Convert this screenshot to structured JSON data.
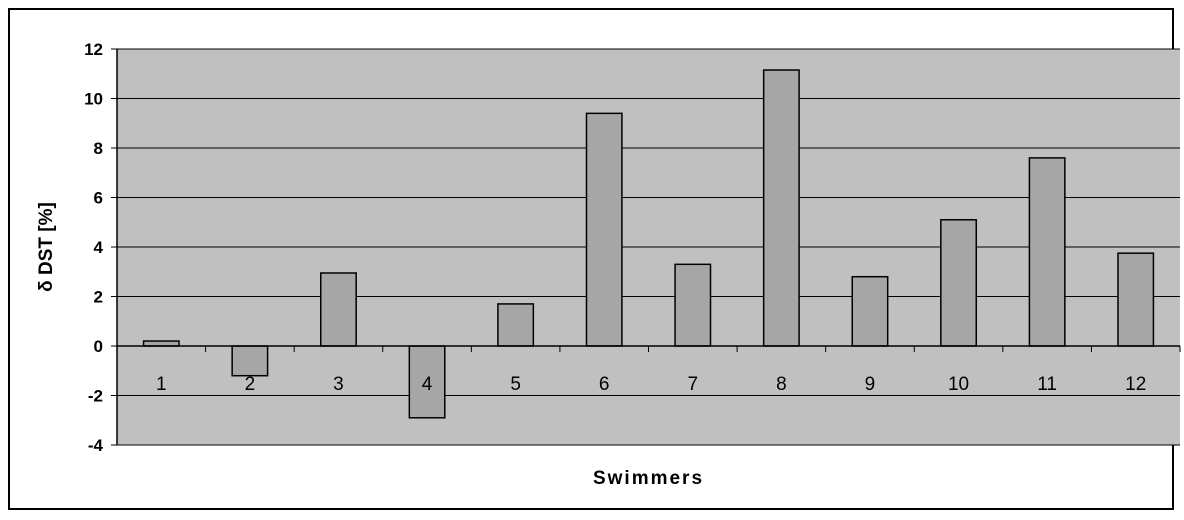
{
  "chart_data": {
    "type": "bar",
    "title": "",
    "xlabel": "Swimmers",
    "ylabel": "δ DST [%]",
    "categories": [
      "1",
      "2",
      "3",
      "4",
      "5",
      "6",
      "7",
      "8",
      "9",
      "10",
      "11",
      "12"
    ],
    "values": [
      0.2,
      -1.2,
      2.95,
      -2.9,
      1.7,
      9.4,
      3.3,
      11.15,
      2.8,
      5.1,
      7.6,
      3.75
    ],
    "ylim": [
      -4,
      12
    ],
    "yticks": [
      "-4",
      "-2",
      "0",
      "2",
      "4",
      "6",
      "8",
      "10",
      "12"
    ],
    "grid": true,
    "legend": "none",
    "colors": {
      "plot_background": "#c0c0c0",
      "bar_fill": "#a6a6a6",
      "bar_stroke": "#000000",
      "grid": "#000000"
    }
  }
}
